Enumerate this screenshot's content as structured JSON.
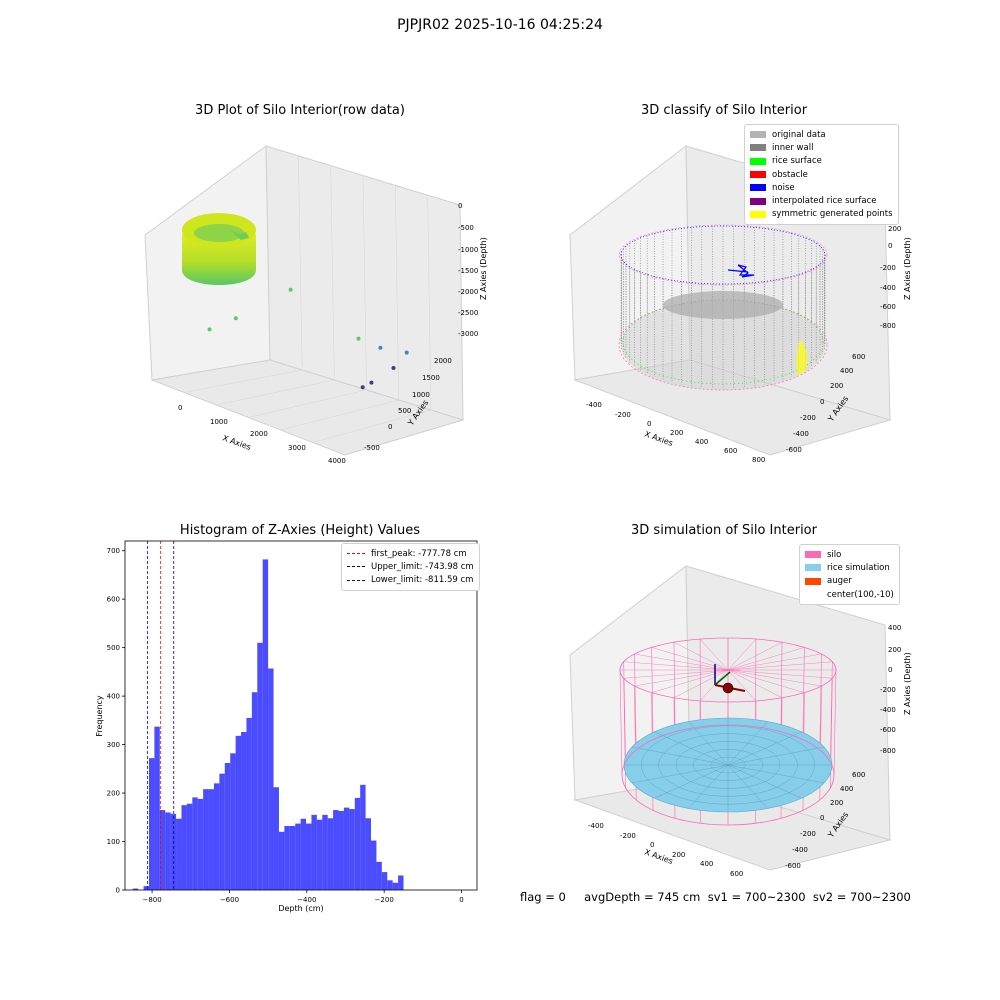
{
  "suptitle": "PJPJR02 2025-10-16 04:25:24",
  "footer": "flag = 0     avgDepth = 745 cm  sv1 = 700~2300  sv2 = 700~2300",
  "chart_data": [
    {
      "type": "scatter",
      "title": "3D Plot of Silo Interior(row data)",
      "xlabel": "X Axies",
      "ylabel": "Y Axies",
      "zlabel": "Z Axies (Depth)",
      "x_ticks": [
        "0",
        "1000",
        "2000",
        "3000",
        "4000"
      ],
      "y_ticks": [
        "-500",
        "0",
        "500",
        "1000",
        "1500",
        "2000"
      ],
      "z_ticks": [
        "0",
        "-500",
        "-1000",
        "-1500",
        "-2000",
        "-2500",
        "-3000"
      ],
      "outlier_points": [
        {
          "x": 1450,
          "y": 800,
          "z": -1400
        },
        {
          "x": 700,
          "y": 300,
          "z": -2100
        },
        {
          "x": 300,
          "y": 100,
          "z": -2400
        },
        {
          "x": 2900,
          "y": 900,
          "z": -2300
        },
        {
          "x": 3100,
          "y": 1200,
          "z": -2600
        },
        {
          "x": 3500,
          "y": 1400,
          "z": -2700
        },
        {
          "x": 3600,
          "y": 1000,
          "z": -2900
        },
        {
          "x": 3700,
          "y": 400,
          "z": -3000
        },
        {
          "x": 3600,
          "y": 300,
          "z": -3100
        }
      ]
    },
    {
      "type": "scatter",
      "title": "3D classify of Silo Interior",
      "xlabel": "X Axies",
      "ylabel": "Y Axies",
      "zlabel": "Z Axies (Depth)",
      "x_ticks": [
        "-400",
        "-200",
        "0",
        "200",
        "400",
        "600",
        "800"
      ],
      "y_ticks": [
        "-600",
        "-400",
        "-200",
        "0",
        "200",
        "400",
        "600"
      ],
      "z_ticks": [
        "200",
        "0",
        "-200",
        "-400",
        "-600",
        "-800"
      ],
      "legend": [
        {
          "label": "original data",
          "color": "#b3b3b3"
        },
        {
          "label": "inner wall",
          "color": "#808080"
        },
        {
          "label": "rice surface",
          "color": "#00ff00"
        },
        {
          "label": "obstacle",
          "color": "#ff0000"
        },
        {
          "label": "noise",
          "color": "#0000ff"
        },
        {
          "label": "interpolated rice surface",
          "color": "#800080"
        },
        {
          "label": "symmetric generated points",
          "color": "#ffff00"
        }
      ]
    },
    {
      "type": "bar",
      "title": "Histogram of Z-Axies (Height) Values",
      "xlabel": "Depth (cm)",
      "ylabel": "Frequency",
      "xlim": [
        -870,
        40
      ],
      "ylim": [
        0,
        720
      ],
      "x_ticks": [
        -800,
        -600,
        -400,
        -200,
        0
      ],
      "y_ticks": [
        0,
        100,
        200,
        300,
        400,
        500,
        600,
        700
      ],
      "bar_color": "#0000ff",
      "bins": [
        {
          "x0": -850,
          "x1": -836,
          "count": 3
        },
        {
          "x0": -822,
          "x1": -808,
          "count": 8
        },
        {
          "x0": -808,
          "x1": -794,
          "count": 272
        },
        {
          "x0": -794,
          "x1": -780,
          "count": 337
        },
        {
          "x0": -780,
          "x1": -766,
          "count": 165
        },
        {
          "x0": -766,
          "x1": -752,
          "count": 160
        },
        {
          "x0": -752,
          "x1": -738,
          "count": 157
        },
        {
          "x0": -738,
          "x1": -724,
          "count": 147
        },
        {
          "x0": -724,
          "x1": -710,
          "count": 175
        },
        {
          "x0": -710,
          "x1": -696,
          "count": 178
        },
        {
          "x0": -696,
          "x1": -682,
          "count": 191
        },
        {
          "x0": -682,
          "x1": -668,
          "count": 188
        },
        {
          "x0": -668,
          "x1": -654,
          "count": 208
        },
        {
          "x0": -654,
          "x1": -640,
          "count": 208
        },
        {
          "x0": -640,
          "x1": -626,
          "count": 220
        },
        {
          "x0": -626,
          "x1": -612,
          "count": 240
        },
        {
          "x0": -612,
          "x1": -598,
          "count": 262
        },
        {
          "x0": -598,
          "x1": -584,
          "count": 282
        },
        {
          "x0": -584,
          "x1": -570,
          "count": 318
        },
        {
          "x0": -570,
          "x1": -556,
          "count": 326
        },
        {
          "x0": -556,
          "x1": -542,
          "count": 355
        },
        {
          "x0": -542,
          "x1": -528,
          "count": 408
        },
        {
          "x0": -528,
          "x1": -514,
          "count": 510
        },
        {
          "x0": -514,
          "x1": -500,
          "count": 682
        },
        {
          "x0": -500,
          "x1": -486,
          "count": 457
        },
        {
          "x0": -486,
          "x1": -472,
          "count": 212
        },
        {
          "x0": -472,
          "x1": -458,
          "count": 120
        },
        {
          "x0": -458,
          "x1": -444,
          "count": 132
        },
        {
          "x0": -444,
          "x1": -430,
          "count": 132
        },
        {
          "x0": -430,
          "x1": -416,
          "count": 137
        },
        {
          "x0": -416,
          "x1": -402,
          "count": 147
        },
        {
          "x0": -402,
          "x1": -388,
          "count": 137
        },
        {
          "x0": -388,
          "x1": -374,
          "count": 155
        },
        {
          "x0": -374,
          "x1": -360,
          "count": 145
        },
        {
          "x0": -360,
          "x1": -346,
          "count": 155
        },
        {
          "x0": -346,
          "x1": -332,
          "count": 148
        },
        {
          "x0": -332,
          "x1": -318,
          "count": 165
        },
        {
          "x0": -318,
          "x1": -304,
          "count": 163
        },
        {
          "x0": -304,
          "x1": -290,
          "count": 170
        },
        {
          "x0": -290,
          "x1": -276,
          "count": 167
        },
        {
          "x0": -276,
          "x1": -262,
          "count": 190
        },
        {
          "x0": -262,
          "x1": -248,
          "count": 217
        },
        {
          "x0": -248,
          "x1": -234,
          "count": 148
        },
        {
          "x0": -234,
          "x1": -220,
          "count": 102
        },
        {
          "x0": -220,
          "x1": -206,
          "count": 58
        },
        {
          "x0": -206,
          "x1": -192,
          "count": 37
        },
        {
          "x0": -192,
          "x1": -178,
          "count": 20
        },
        {
          "x0": -178,
          "x1": -164,
          "count": 15
        },
        {
          "x0": -164,
          "x1": -150,
          "count": 30
        }
      ],
      "vlines": [
        {
          "label": "first_peak: -777.78 cm",
          "x": -777.78,
          "color": "#ff0000"
        },
        {
          "label": "Upper_limit: -743.98 cm",
          "x": -743.98,
          "color": "#00008b"
        },
        {
          "label": "Lower_limit: -811.59 cm",
          "x": -811.59,
          "color": "#0000ff"
        }
      ]
    },
    {
      "type": "surface",
      "title": "3D simulation of Silo Interior",
      "xlabel": "X Axies",
      "ylabel": "Y Axies",
      "zlabel": "Z Axies (Depth)",
      "x_ticks": [
        "-400",
        "-200",
        "0",
        "200",
        "400",
        "600"
      ],
      "y_ticks": [
        "-600",
        "-400",
        "-200",
        "0",
        "200",
        "400",
        "600"
      ],
      "z_ticks": [
        "400",
        "200",
        "0",
        "-200",
        "-400",
        "-600",
        "-800"
      ],
      "legend": [
        {
          "label": "silo",
          "color": "#ff69b4"
        },
        {
          "label": "rice simulation",
          "color": "#87ceeb"
        },
        {
          "label": "auger",
          "color": "#ff4500"
        },
        {
          "label": "center(100,-10)",
          "color": ""
        }
      ]
    }
  ]
}
